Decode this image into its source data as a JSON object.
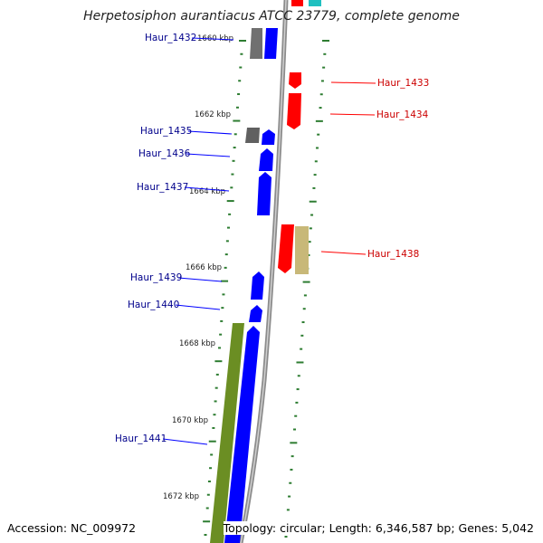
{
  "title": "Herpetosiphon aurantiacus ATCC 23779, complete genome",
  "footer": {
    "accession": "Accession: NC_009972",
    "topology": "Topology: circular; Length: 6,346,587 bp; Genes: 5,042"
  },
  "colors": {
    "gene_blue": "#0000ff",
    "gene_red": "#ff0000",
    "gene_gray": "#808080",
    "gene_olive": "#6b8e23",
    "gene_khaki": "#c8b878",
    "gene_teal": "#20c0c0",
    "backbone": "#999999",
    "tick_green": "#2e7d32",
    "label_blue": "#00008b",
    "label_red": "#cc0000"
  },
  "axis": {
    "kbp_labels": [
      "1660 kbp",
      "1662 kbp",
      "1664 kbp",
      "1666 kbp",
      "1668 kbp",
      "1670 kbp",
      "1672 kbp"
    ]
  },
  "genes": [
    {
      "name": "Haur_1432",
      "strand": "left"
    },
    {
      "name": "Haur_1433",
      "strand": "right"
    },
    {
      "name": "Haur_1434",
      "strand": "right"
    },
    {
      "name": "Haur_1435",
      "strand": "left"
    },
    {
      "name": "Haur_1436",
      "strand": "left"
    },
    {
      "name": "Haur_1437",
      "strand": "left"
    },
    {
      "name": "Haur_1438",
      "strand": "right"
    },
    {
      "name": "Haur_1439",
      "strand": "left"
    },
    {
      "name": "Haur_1440",
      "strand": "left"
    },
    {
      "name": "Haur_1441",
      "strand": "left"
    }
  ]
}
